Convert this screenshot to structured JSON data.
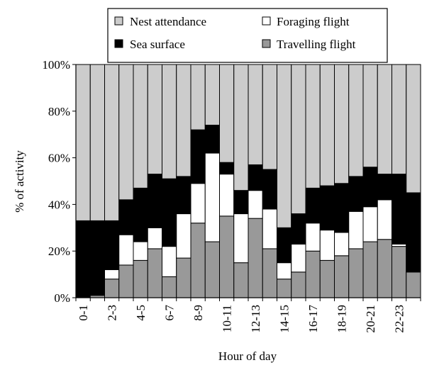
{
  "chart_data": {
    "type": "bar",
    "stacked": true,
    "percent": true,
    "xlabel": "Hour of day",
    "ylabel": "% of activity",
    "ylim": [
      0,
      100
    ],
    "yticks": [
      "0%",
      "20%",
      "40%",
      "60%",
      "80%",
      "100%"
    ],
    "categories": [
      "0-1",
      "1-2",
      "2-3",
      "3-4",
      "4-5",
      "5-6",
      "6-7",
      "7-8",
      "8-9",
      "9-10",
      "10-11",
      "11-12",
      "12-13",
      "13-14",
      "14-15",
      "15-16",
      "16-17",
      "17-18",
      "18-19",
      "19-20",
      "20-21",
      "21-22",
      "22-23",
      "23-24"
    ],
    "xtick_labels": [
      "0-1",
      "",
      "2-3",
      "",
      "4-5",
      "",
      "6-7",
      "",
      "8-9",
      "",
      "10-11",
      "",
      "12-13",
      "",
      "14-15",
      "",
      "16-17",
      "",
      "18-19",
      "",
      "20-21",
      "",
      "22-23",
      ""
    ],
    "legend": {
      "placement": "top",
      "entries": [
        "Nest attendance",
        "Foraging flight",
        "Sea surface",
        "Travelling flight"
      ]
    },
    "series": [
      {
        "name": "Travelling flight",
        "color": "#999999",
        "values": [
          0,
          1,
          8,
          14,
          16,
          21,
          9,
          17,
          32,
          24,
          35,
          15,
          34,
          21,
          8,
          11,
          20,
          16,
          18,
          21,
          24,
          25,
          22,
          11
        ]
      },
      {
        "name": "Foraging flight",
        "color": "#ffffff",
        "values": [
          0,
          0,
          4,
          13,
          8,
          9,
          13,
          19,
          17,
          38,
          18,
          21,
          12,
          17,
          7,
          12,
          12,
          13,
          10,
          16,
          15,
          17,
          1,
          0
        ]
      },
      {
        "name": "Sea surface",
        "color": "#000000",
        "values": [
          33,
          32,
          21,
          15,
          23,
          23,
          29,
          16,
          23,
          12,
          5,
          10,
          11,
          17,
          15,
          13,
          15,
          19,
          21,
          15,
          17,
          11,
          30,
          34
        ]
      },
      {
        "name": "Nest attendance",
        "color": "#cccccc",
        "values": [
          67,
          67,
          67,
          58,
          53,
          47,
          49,
          48,
          28,
          26,
          42,
          54,
          43,
          45,
          70,
          64,
          53,
          52,
          51,
          48,
          44,
          47,
          47,
          55
        ]
      }
    ]
  }
}
